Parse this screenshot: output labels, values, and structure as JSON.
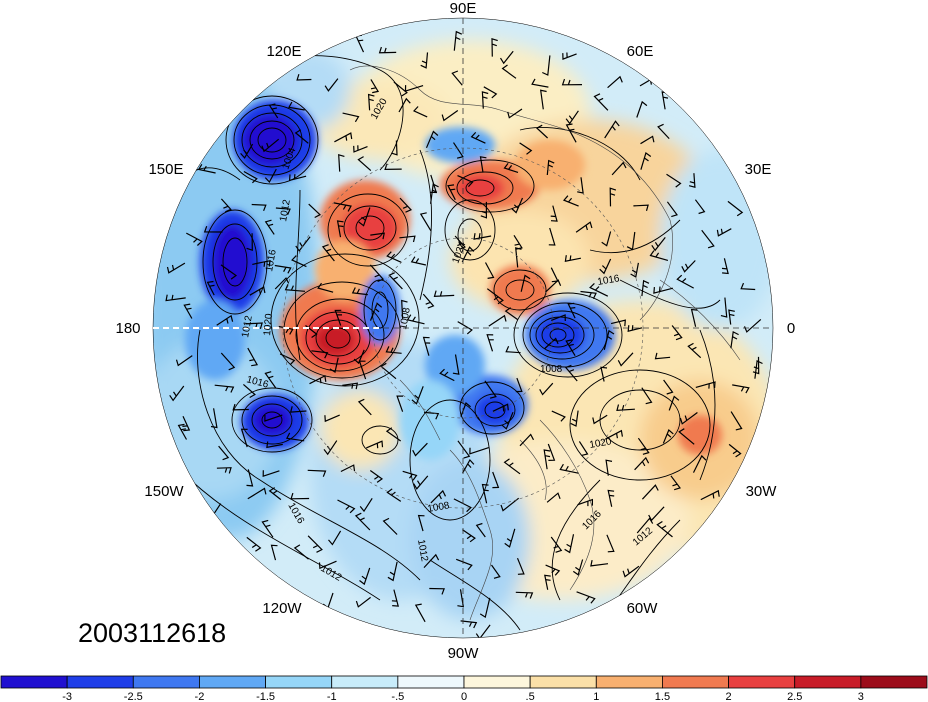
{
  "date_stamp": "2003112618",
  "longitude_labels": [
    {
      "text": "90E",
      "lon": "90E"
    },
    {
      "text": "60E",
      "lon": "60E"
    },
    {
      "text": "30E",
      "lon": "30E"
    },
    {
      "text": "0",
      "lon": "0"
    },
    {
      "text": "30W",
      "lon": "30W"
    },
    {
      "text": "60W",
      "lon": "60W"
    },
    {
      "text": "90W",
      "lon": "90W"
    },
    {
      "text": "120W",
      "lon": "120W"
    },
    {
      "text": "150W",
      "lon": "150W"
    },
    {
      "text": "180",
      "lon": "180"
    },
    {
      "text": "150E",
      "lon": "150E"
    },
    {
      "text": "120E",
      "lon": "120E"
    }
  ],
  "contour_labels": [
    "1004",
    "1012",
    "1016",
    "1020",
    "1024",
    "1012",
    "1016",
    "1008",
    "1020",
    "1016",
    "1016",
    "1012",
    "1008",
    "1012",
    "1012",
    "1016",
    "1020",
    "1008"
  ],
  "colorbar": {
    "colors": [
      "#2010d0",
      "#1f3ee8",
      "#3f78f0",
      "#60a8f4",
      "#96d6f8",
      "#c8ecfa",
      "#eef8fc",
      "#fdf6dc",
      "#fbe0a8",
      "#f8b070",
      "#f07a50",
      "#e84040",
      "#c81c28",
      "#9c0c1a"
    ],
    "tick_labels": [
      "-3",
      "-2.5",
      "-2",
      "-1.5",
      "-1",
      "-.5",
      "0",
      ".5",
      "1",
      "1.5",
      "2",
      "2.5",
      "3"
    ]
  },
  "colors": {
    "ocean_bg": "#d4eefa",
    "contour": "#000000"
  }
}
